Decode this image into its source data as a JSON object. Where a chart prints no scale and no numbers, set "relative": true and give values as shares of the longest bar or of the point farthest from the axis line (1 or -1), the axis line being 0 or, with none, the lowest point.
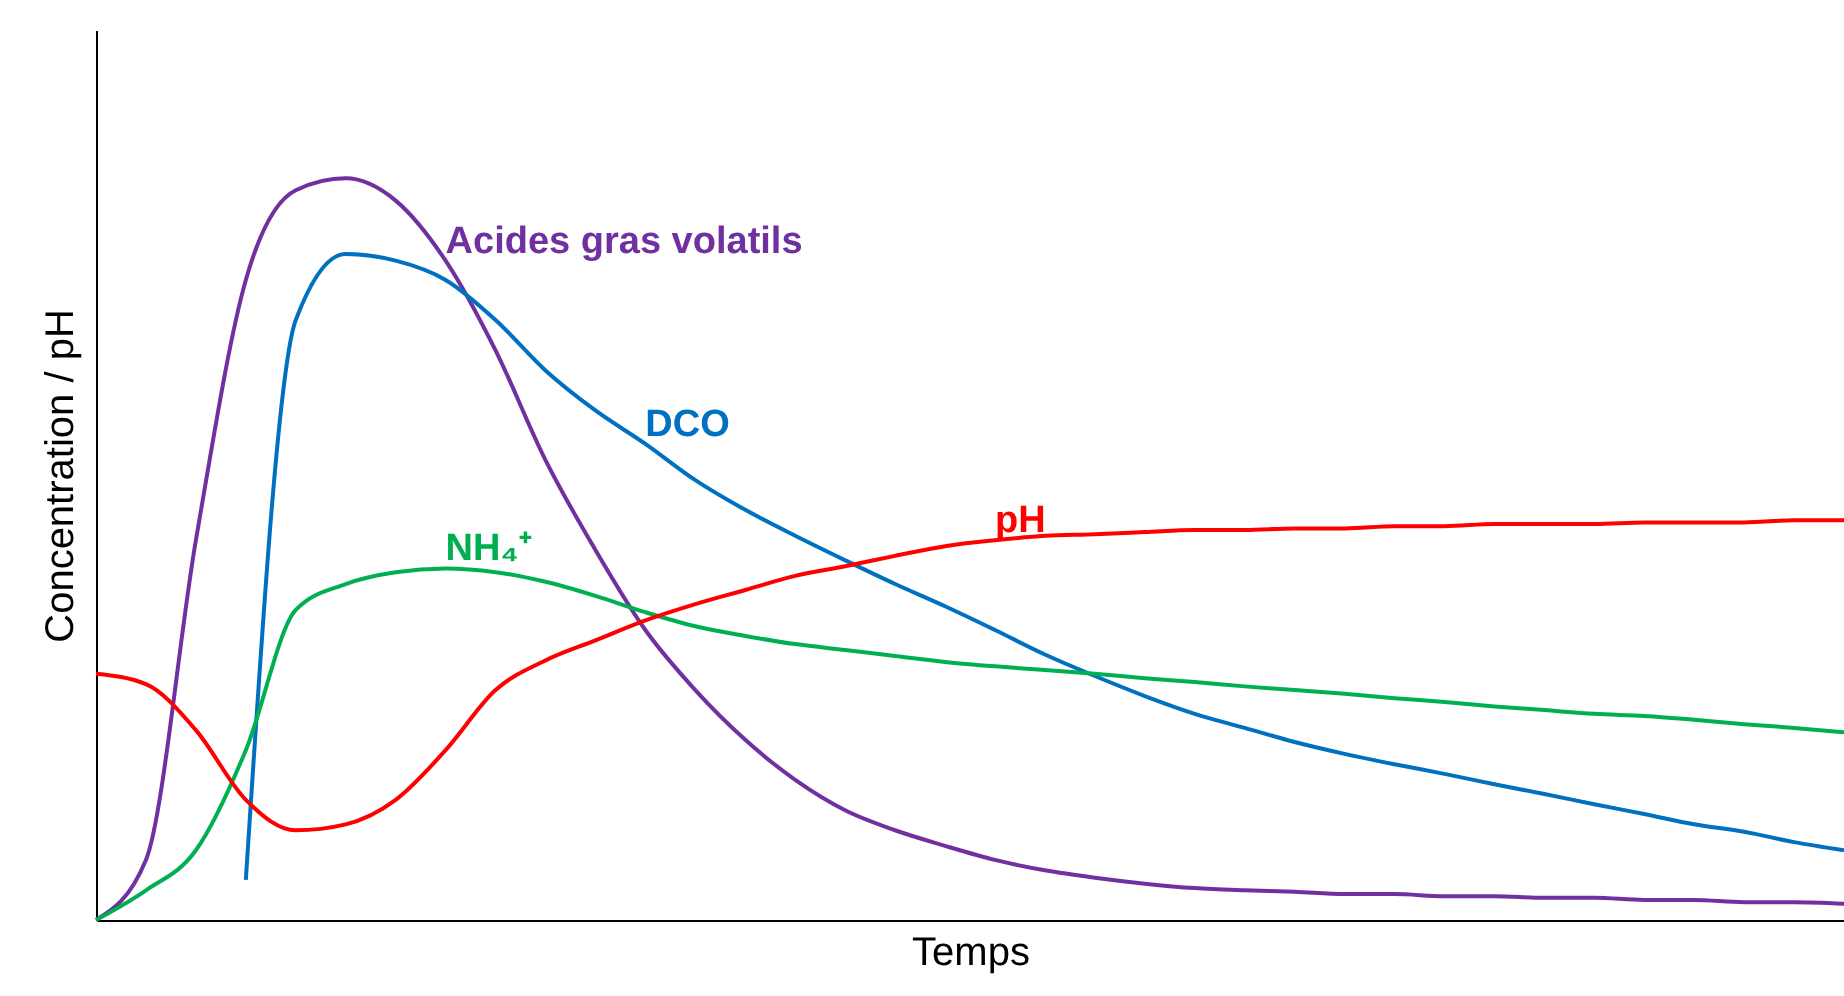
{
  "chart_data": {
    "type": "line",
    "relative": true,
    "xlabel": "Temps",
    "ylabel": "Concentration / pH",
    "grid": false,
    "marker": "none",
    "categories": [
      null,
      null,
      null,
      null,
      null,
      null,
      null,
      null,
      null,
      null,
      null,
      null,
      null,
      null,
      null,
      null,
      null,
      null,
      null,
      null,
      null,
      null,
      null,
      null,
      null,
      null,
      null,
      null,
      null,
      null,
      null,
      null,
      null,
      null,
      null,
      null
    ],
    "series": [
      {
        "name": "Acides gras volatils",
        "color": "#7030a0",
        "values": [
          0,
          0.081,
          0.512,
          0.863,
          0.984,
          1,
          0.97,
          0.889,
          0.768,
          0.62,
          0.499,
          0.391,
          0.31,
          0.243,
          0.189,
          0.148,
          0.121,
          0.1,
          0.081,
          0.067,
          0.057,
          0.049,
          0.043,
          0.04,
          0.038,
          0.035,
          0.035,
          0.032,
          0.032,
          0.03,
          0.03,
          0.027,
          0.027,
          0.024,
          0.024,
          0.022
        ]
      },
      {
        "name": "DCO",
        "color": "#0070c0",
        "values": [
          null,
          null,
          null,
          0.054,
          0.809,
          0.898,
          0.889,
          0.863,
          0.809,
          0.741,
          0.687,
          0.642,
          0.593,
          0.553,
          0.518,
          0.485,
          0.453,
          0.423,
          0.391,
          0.358,
          0.329,
          0.302,
          0.278,
          0.259,
          0.24,
          0.224,
          0.21,
          0.197,
          0.183,
          0.17,
          0.156,
          0.143,
          0.129,
          0.119,
          0.105,
          0.094
        ]
      },
      {
        "name": "NH₄⁺",
        "color": "#00b050",
        "values": [
          0,
          0.04,
          0.094,
          0.229,
          0.418,
          0.453,
          0.469,
          0.474,
          0.469,
          0.456,
          0.437,
          0.415,
          0.396,
          0.383,
          0.372,
          0.364,
          0.356,
          0.348,
          0.342,
          0.337,
          0.332,
          0.326,
          0.321,
          0.315,
          0.31,
          0.305,
          0.299,
          0.294,
          0.288,
          0.283,
          0.278,
          0.275,
          0.27,
          0.264,
          0.259,
          0.253
        ]
      },
      {
        "name": "pH",
        "color": "#ff0000",
        "values": [
          0.332,
          0.318,
          0.256,
          0.162,
          0.121,
          0.129,
          0.162,
          0.229,
          0.31,
          0.35,
          0.377,
          0.404,
          0.426,
          0.445,
          0.464,
          0.477,
          0.491,
          0.504,
          0.512,
          0.518,
          0.52,
          0.523,
          0.526,
          0.526,
          0.528,
          0.528,
          0.531,
          0.531,
          0.534,
          0.534,
          0.534,
          0.536,
          0.536,
          0.536,
          0.539,
          0.539
        ]
      }
    ]
  }
}
